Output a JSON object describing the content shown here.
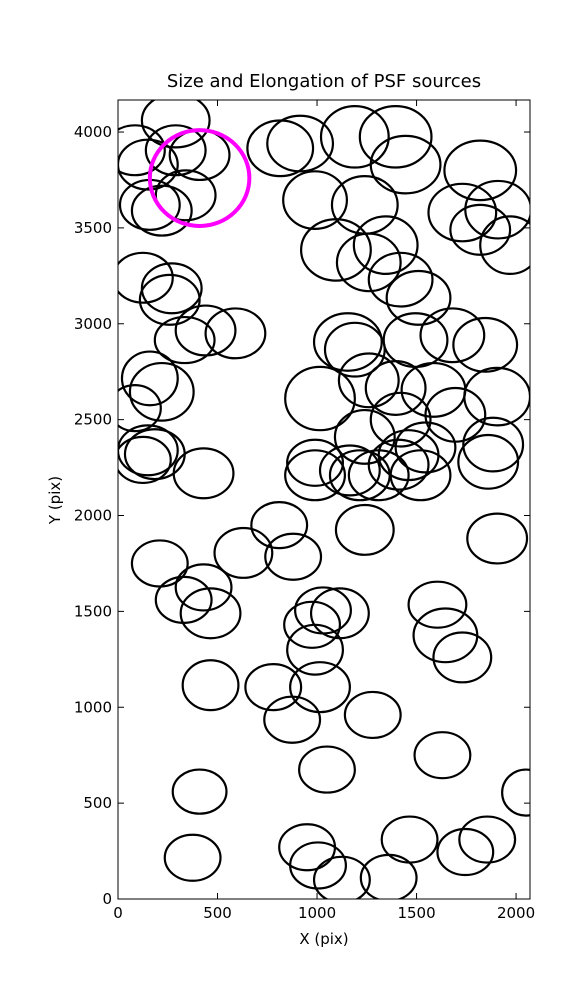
{
  "chart_data": {
    "type": "ellipse",
    "title": "Size and Elongation of PSF sources",
    "x_label": "X (pix)",
    "y_label": "Y (pix)",
    "xlim": [
      0,
      2070
    ],
    "ylim": [
      0,
      4167
    ],
    "xticks": [
      0,
      500,
      1000,
      1500,
      2000
    ],
    "yticks": [
      0,
      500,
      1000,
      1500,
      2000,
      2500,
      3000,
      3500,
      4000
    ],
    "sources": {
      "color": "#000000",
      "x": [
        85,
        290,
        150,
        290,
        410,
        340,
        160,
        220,
        815,
        915,
        1190,
        1395,
        1445,
        1820,
        990,
        1240,
        1730,
        1910,
        1820,
        1970,
        1345,
        1095,
        1260,
        1420,
        1510,
        125,
        270,
        260,
        335,
        440,
        590,
        1155,
        1190,
        1495,
        1680,
        1845,
        160,
        220,
        85,
        1015,
        1260,
        1395,
        1585,
        1905,
        1420,
        1240,
        1695,
        1545,
        1460,
        1885,
        150,
        185,
        125,
        430,
        990,
        990,
        1165,
        1215,
        1310,
        1410,
        1520,
        1860,
        810,
        1240,
        1905,
        210,
        630,
        880,
        430,
        330,
        465,
        1030,
        1115,
        975,
        990,
        1605,
        1645,
        1730,
        780,
        1015,
        465,
        875,
        1280,
        1630,
        1050,
        410,
        2050,
        950,
        1005,
        1125,
        1360,
        375,
        1465,
        1745,
        1855
      ],
      "y": [
        3905,
        4060,
        3830,
        3905,
        3880,
        3670,
        3620,
        3590,
        3915,
        3940,
        3975,
        3975,
        3830,
        3800,
        3645,
        3620,
        3580,
        3595,
        3490,
        3410,
        3410,
        3385,
        3320,
        3230,
        3135,
        3240,
        3185,
        3125,
        2915,
        2965,
        2950,
        2905,
        2865,
        2915,
        2940,
        2890,
        2715,
        2645,
        2560,
        2610,
        2705,
        2665,
        2655,
        2620,
        2500,
        2410,
        2525,
        2355,
        2315,
        2370,
        2340,
        2320,
        2290,
        2220,
        2275,
        2210,
        2235,
        2210,
        2210,
        2265,
        2210,
        2280,
        1950,
        1925,
        1880,
        1750,
        1805,
        1785,
        1625,
        1560,
        1490,
        1505,
        1490,
        1430,
        1300,
        1535,
        1375,
        1260,
        1105,
        1105,
        1115,
        935,
        960,
        750,
        675,
        560,
        555,
        270,
        175,
        100,
        110,
        215,
        310,
        245,
        310
      ],
      "width": [
        300,
        340,
        300,
        300,
        300,
        300,
        300,
        300,
        330,
        330,
        340,
        360,
        350,
        360,
        320,
        330,
        340,
        330,
        300,
        300,
        320,
        350,
        320,
        320,
        320,
        300,
        300,
        300,
        300,
        300,
        300,
        340,
        300,
        320,
        320,
        320,
        280,
        320,
        260,
        350,
        300,
        300,
        320,
        330,
        300,
        300,
        300,
        300,
        300,
        300,
        300,
        300,
        280,
        300,
        280,
        300,
        300,
        300,
        300,
        300,
        300,
        300,
        280,
        290,
        300,
        280,
        290,
        280,
        280,
        280,
        300,
        280,
        290,
        280,
        280,
        290,
        320,
        290,
        280,
        300,
        280,
        280,
        280,
        280,
        280,
        270,
        240,
        280,
        280,
        280,
        280,
        280,
        280,
        280,
        280
      ],
      "height": [
        260,
        280,
        260,
        260,
        260,
        260,
        260,
        260,
        290,
        290,
        320,
        320,
        300,
        310,
        300,
        300,
        300,
        300,
        260,
        300,
        300,
        320,
        300,
        280,
        280,
        260,
        260,
        260,
        240,
        260,
        260,
        300,
        280,
        280,
        280,
        280,
        280,
        300,
        240,
        330,
        280,
        280,
        280,
        300,
        280,
        280,
        280,
        260,
        260,
        280,
        260,
        260,
        240,
        260,
        240,
        260,
        260,
        260,
        260,
        260,
        260,
        280,
        240,
        260,
        260,
        240,
        260,
        240,
        240,
        240,
        260,
        240,
        260,
        240,
        260,
        240,
        280,
        260,
        240,
        260,
        260,
        240,
        240,
        240,
        240,
        230,
        240,
        240,
        240,
        240,
        240,
        240,
        240,
        240,
        240
      ]
    },
    "highlight": {
      "color": "#ff00ff",
      "x": [
        410
      ],
      "y": [
        3760
      ],
      "width": [
        500
      ],
      "height": [
        500
      ]
    }
  }
}
